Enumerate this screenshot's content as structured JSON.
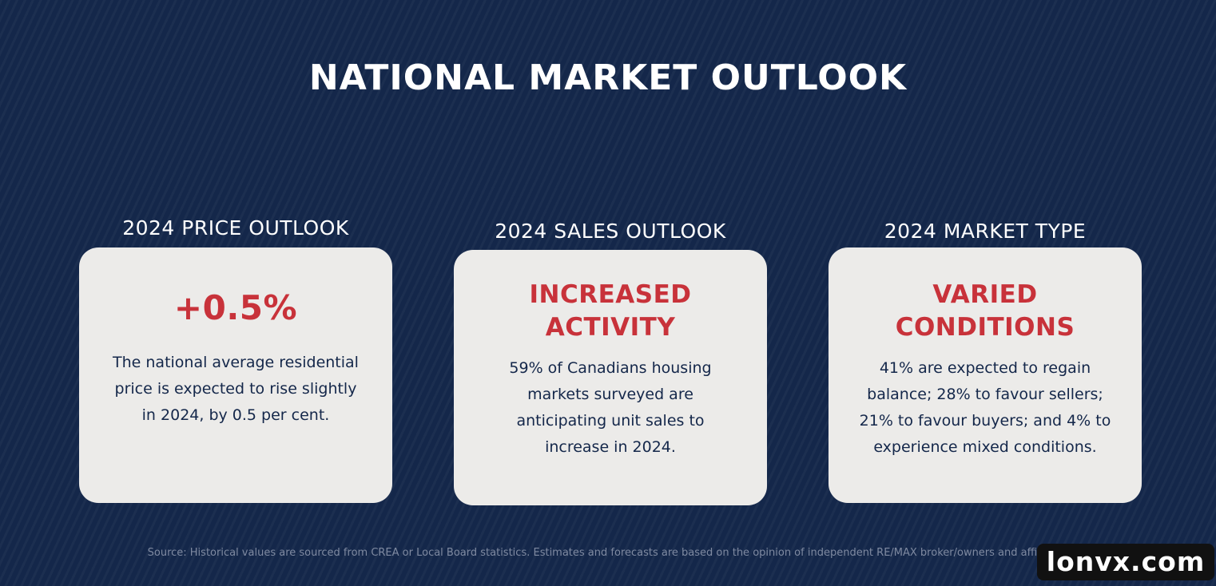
{
  "title": "NATIONAL MARKET OUTLOOK",
  "columns": [
    {
      "heading": "2024 PRICE OUTLOOK",
      "headline": "+0.5%",
      "body": "The national average residential price is expected to rise slightly in 2024, by 0.5 per cent."
    },
    {
      "heading": "2024 SALES OUTLOOK",
      "headline_lines": [
        "INCREASED",
        "ACTIVITY"
      ],
      "body": "59% of Canadians housing markets surveyed are anticipating unit sales to increase in 2024."
    },
    {
      "heading": "2024 MARKET TYPE",
      "headline_lines": [
        "VARIED",
        "CONDITIONS"
      ],
      "body": "41% are expected to regain balance; 28% to favour sellers; 21% to favour buyers; and 4% to experience mixed conditions."
    }
  ],
  "source": "Source: Historical values are sourced from CREA or Local Board statistics. Estimates and forecasts are based on the opinion of independent RE/MAX broker/owners and affiliates.",
  "watermark": "lonvx.com",
  "colors": {
    "background": "#14274a",
    "card": "#ecebe9",
    "accent": "#c8323a",
    "text_dark": "#14274a"
  }
}
